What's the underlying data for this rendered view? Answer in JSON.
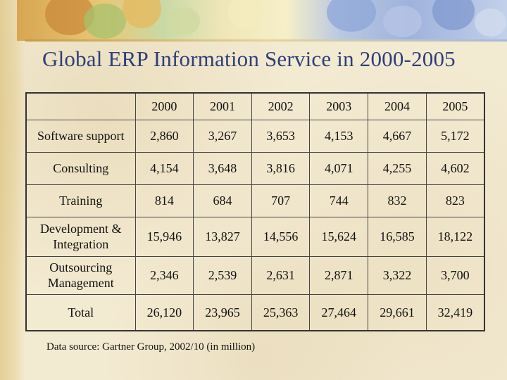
{
  "slide": {
    "title": "Global ERP Information Service in 2000-2005",
    "source_note": "Data source: Gartner Group, 2002/10 (in million)"
  },
  "table": {
    "corner": "",
    "years": [
      "2000",
      "2001",
      "2002",
      "2003",
      "2004",
      "2005"
    ],
    "rows": [
      {
        "label": "Software support",
        "values": [
          "2,860",
          "3,267",
          "3,653",
          "4,153",
          "4,667",
          "5,172"
        ]
      },
      {
        "label": "Consulting",
        "values": [
          "4,154",
          "3,648",
          "3,816",
          "4,071",
          "4,255",
          "4,602"
        ]
      },
      {
        "label": "Training",
        "values": [
          "814",
          "684",
          "707",
          "744",
          "832",
          "823"
        ]
      },
      {
        "label": "Development & Integration",
        "values": [
          "15,946",
          "13,827",
          "14,556",
          "15,624",
          "16,585",
          "18,122"
        ]
      },
      {
        "label": "Outsourcing Management",
        "values": [
          "2,346",
          "2,539",
          "2,631",
          "2,871",
          "3,322",
          "3,700"
        ]
      },
      {
        "label": "Total",
        "values": [
          "26,120",
          "23,965",
          "25,363",
          "27,464",
          "29,661",
          "32,419"
        ]
      }
    ]
  },
  "colors": {
    "title": "#2e3f78",
    "background": "#f3ead2",
    "grid_lines": "#444444"
  }
}
